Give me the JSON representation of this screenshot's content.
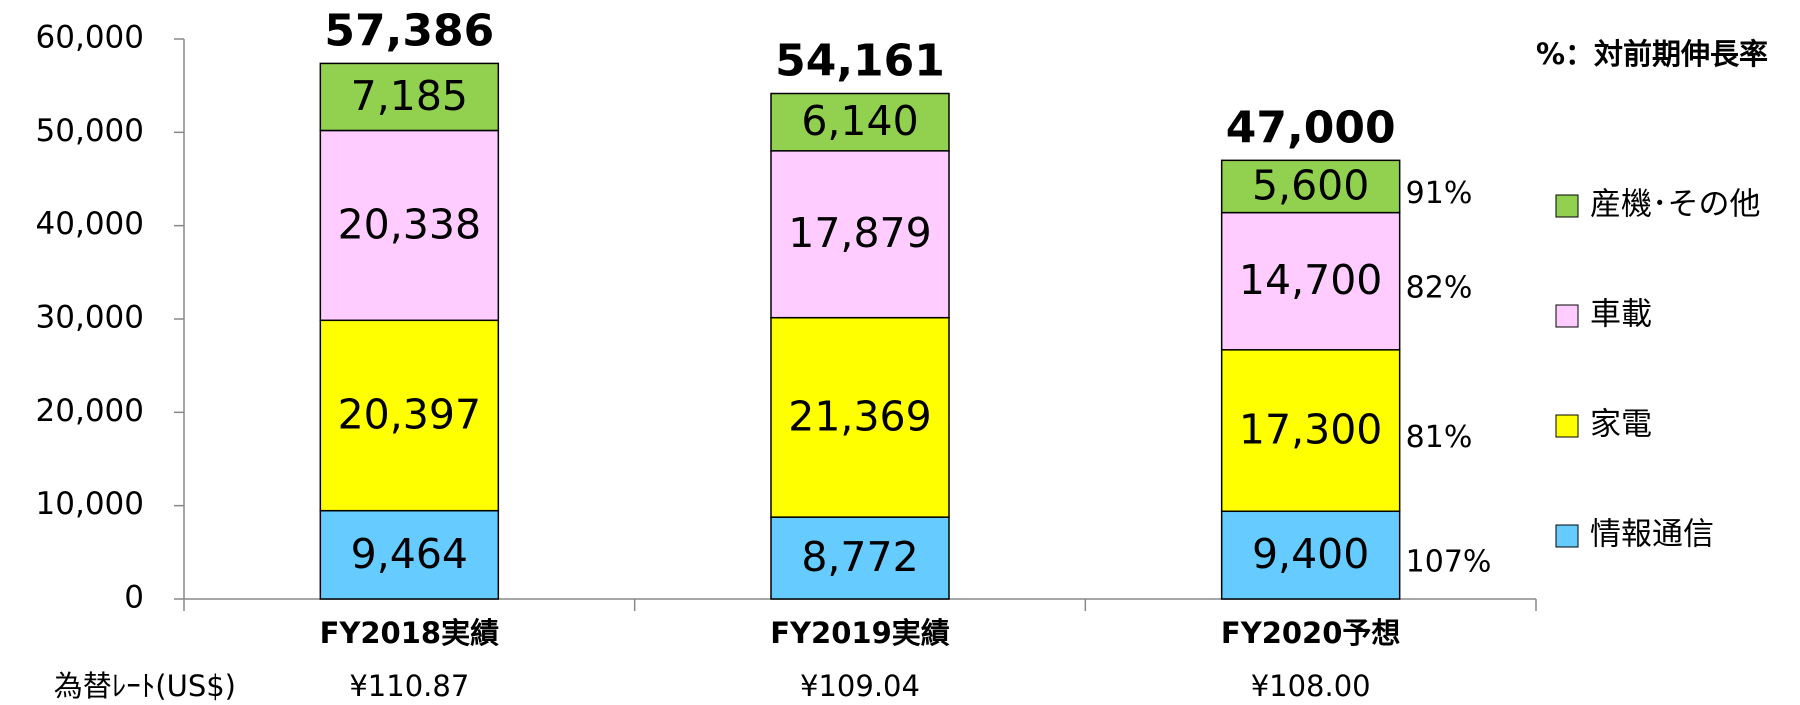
{
  "chart_data": {
    "type": "stacked_bar",
    "note": "%：対前期伸長率",
    "categories": [
      "FY2018実績",
      "FY2019実績",
      "FY2020予想"
    ],
    "series": [
      {
        "name": "情報通信",
        "color": "#66ccff",
        "values": [
          9464,
          8772,
          9400
        ],
        "value_labels": [
          "9,464",
          "8,772",
          "9,400"
        ],
        "growth": 107,
        "growth_label": "107%"
      },
      {
        "name": "家電",
        "color": "#ffff00",
        "values": [
          20397,
          21369,
          17300
        ],
        "value_labels": [
          "20,397",
          "21,369",
          "17,300"
        ],
        "growth": 81,
        "growth_label": "81%"
      },
      {
        "name": "車載",
        "color": "#ffccff",
        "values": [
          20338,
          17879,
          14700
        ],
        "value_labels": [
          "20,338",
          "17,879",
          "14,700"
        ],
        "growth": 82,
        "growth_label": "82%"
      },
      {
        "name": "産機･その他",
        "color": "#92d050",
        "values": [
          7185,
          6140,
          5600
        ],
        "value_labels": [
          "7,185",
          "6,140",
          "5,600"
        ],
        "growth": 91,
        "growth_label": "91%"
      }
    ],
    "totals": [
      57386,
      54161,
      47000
    ],
    "total_labels": [
      "57,386",
      "54,161",
      "47,000"
    ],
    "rate_title": "為替ﾚｰﾄ(US$)",
    "rates": [
      "¥110.87",
      "¥109.04",
      "¥108.00"
    ],
    "ylim": [
      0,
      60000
    ],
    "yticks": [
      0,
      {
        "value": 10000,
        "label": "10,000"
      },
      {
        "value": 20000,
        "label": "20,000"
      },
      {
        "value": 30000,
        "label": "30,000"
      },
      {
        "value": 40000,
        "label": "40,000"
      },
      {
        "value": 50000,
        "label": "50,000"
      },
      {
        "value": 60000,
        "label": "60,000"
      }
    ]
  }
}
